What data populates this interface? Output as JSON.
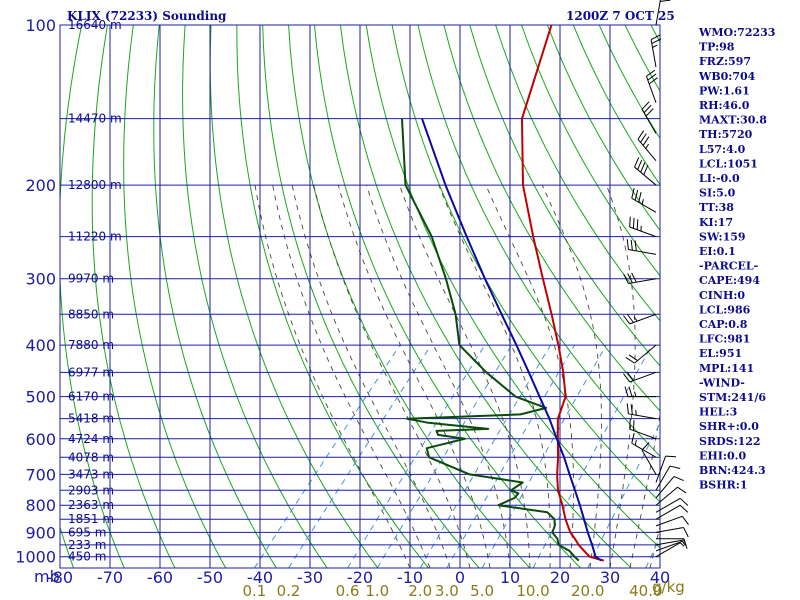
{
  "header": {
    "station": "KLIX (72233) Sounding",
    "time": "1200Z  7 OCT 25"
  },
  "colors": {
    "grid": "#1c1ca8",
    "dry_adiabat": "#1aa81a",
    "moist_adiabat": "#4a4a30",
    "mixing_ratio": "#4a90e0",
    "temperature": "#c00000",
    "dewpoint": "#0a4a0a",
    "parcel": "#0a0aa0",
    "wind": "#000000",
    "labels": "#0b0b8c",
    "mixratio_labels": "#8a7a1a"
  },
  "stats": [
    {
      "label": "WMO:72233"
    },
    {
      "label": "TP:98"
    },
    {
      "label": "FRZ:597"
    },
    {
      "label": "WB0:704"
    },
    {
      "label": "PW:1.61"
    },
    {
      "label": "RH:46.0"
    },
    {
      "label": "MAXT:30.8"
    },
    {
      "label": "TH:5720"
    },
    {
      "label": "L57:4.0"
    },
    {
      "label": "LCL:1051"
    },
    {
      "label": "LI:-0.0"
    },
    {
      "label": "SI:5.0"
    },
    {
      "label": "TT:38"
    },
    {
      "label": "KI:17"
    },
    {
      "label": "SW:159"
    },
    {
      "label": "EI:0.1"
    },
    {
      "label": "-PARCEL-"
    },
    {
      "label": "CAPE:494"
    },
    {
      "label": "CINH:0"
    },
    {
      "label": "LCL:986"
    },
    {
      "label": "CAP:0.8"
    },
    {
      "label": "LFC:981"
    },
    {
      "label": "EL:951"
    },
    {
      "label": "MPL:141"
    },
    {
      "label": "-WIND-"
    },
    {
      "label": "STM:241/6"
    },
    {
      "label": "HEL:3"
    },
    {
      "label": "SHR+:0.0"
    },
    {
      "label": "SRDS:122"
    },
    {
      "label": "EHI:0.0"
    },
    {
      "label": "BRN:424.3"
    },
    {
      "label": "BSHR:1"
    }
  ],
  "chart_data": {
    "type": "line",
    "title": "KLIX (72233) Sounding",
    "subtitle": "1200Z  7 OCT 25",
    "x_axis": {
      "unit_label": "mb",
      "range": [
        -80,
        40
      ],
      "ticks": [
        -80,
        -70,
        -60,
        -50,
        -40,
        -30,
        -20,
        -10,
        0,
        10,
        20,
        30,
        40
      ],
      "tick_labels": [
        "-80",
        "-70",
        "-60",
        "-50",
        "-40",
        "-30",
        "-20",
        "-10",
        "0",
        "10",
        "20",
        "30",
        "40"
      ]
    },
    "y_axis": {
      "scale": "log",
      "range": [
        1050,
        100
      ],
      "ticks": [
        100,
        200,
        300,
        400,
        500,
        600,
        700,
        800,
        900,
        1000
      ]
    },
    "height_labels": [
      {
        "p": 100,
        "label": "16640 m"
      },
      {
        "p": 150,
        "label": "14470 m"
      },
      {
        "p": 200,
        "label": "12800 m"
      },
      {
        "p": 250,
        "label": "11220 m"
      },
      {
        "p": 300,
        "label": "9970 m"
      },
      {
        "p": 350,
        "label": "8850 m"
      },
      {
        "p": 400,
        "label": "7880 m"
      },
      {
        "p": 450,
        "label": "6977 m"
      },
      {
        "p": 500,
        "label": "6170 m"
      },
      {
        "p": 550,
        "label": "5418 m"
      },
      {
        "p": 600,
        "label": "4724 m"
      },
      {
        "p": 650,
        "label": "4078 m"
      },
      {
        "p": 700,
        "label": "3473 m"
      },
      {
        "p": 750,
        "label": "2903 m"
      },
      {
        "p": 800,
        "label": "2363 m"
      },
      {
        "p": 850,
        "label": "1851 m"
      },
      {
        "p": 900,
        "label": "695 m"
      },
      {
        "p": 950,
        "label": "233 m"
      },
      {
        "p": 1000,
        "label": "450 m"
      }
    ],
    "mixing_ratio_labels": [
      "0.1",
      "0.2",
      "0.6",
      "1.0",
      "2.0",
      "3.0",
      "5.0",
      "10.0",
      "20.0",
      "40.0"
    ],
    "mixing_ratio_unit": "g/kg",
    "series": [
      {
        "role": "temperature",
        "points": [
          {
            "p": 1017,
            "t": 27.5
          },
          {
            "p": 1000,
            "t": 24.0
          },
          {
            "p": 950,
            "t": 19.8
          },
          {
            "p": 925,
            "t": 18.0
          },
          {
            "p": 900,
            "t": 16.0
          },
          {
            "p": 850,
            "t": 12.8
          },
          {
            "p": 800,
            "t": 9.8
          },
          {
            "p": 750,
            "t": 6.4
          },
          {
            "p": 700,
            "t": 3.5
          },
          {
            "p": 650,
            "t": 0.8
          },
          {
            "p": 600,
            "t": -2.4
          },
          {
            "p": 550,
            "t": -5.8
          },
          {
            "p": 500,
            "t": -8.0
          },
          {
            "p": 450,
            "t": -12.6
          },
          {
            "p": 400,
            "t": -18.2
          },
          {
            "p": 350,
            "t": -24.8
          },
          {
            "p": 300,
            "t": -32.6
          },
          {
            "p": 250,
            "t": -41.7
          },
          {
            "p": 200,
            "t": -52.5
          },
          {
            "p": 150,
            "t": -64.0
          },
          {
            "p": 100,
            "t": -74.0
          }
        ]
      },
      {
        "role": "dewpoint",
        "points": [
          {
            "p": 1017,
            "t": 22.5
          },
          {
            "p": 1000,
            "t": 21.0
          },
          {
            "p": 975,
            "t": 19.0
          },
          {
            "p": 950,
            "t": 15.8
          },
          {
            "p": 925,
            "t": 14.5
          },
          {
            "p": 900,
            "t": 12.4
          },
          {
            "p": 875,
            "t": 11.8
          },
          {
            "p": 850,
            "t": 10.6
          },
          {
            "p": 825,
            "t": 8.0
          },
          {
            "p": 800,
            "t": -3.0
          },
          {
            "p": 775,
            "t": -1.0
          },
          {
            "p": 760,
            "t": -1.0
          },
          {
            "p": 750,
            "t": -3.0
          },
          {
            "p": 725,
            "t": -2.0
          },
          {
            "p": 700,
            "t": -14.0
          },
          {
            "p": 650,
            "t": -25.0
          },
          {
            "p": 625,
            "t": -27.0
          },
          {
            "p": 600,
            "t": -21.0
          },
          {
            "p": 590,
            "t": -27.0
          },
          {
            "p": 580,
            "t": -28.0
          },
          {
            "p": 575,
            "t": -18.0
          },
          {
            "p": 560,
            "t": -31.0
          },
          {
            "p": 550,
            "t": -36.0
          },
          {
            "p": 540,
            "t": -14.0
          },
          {
            "p": 525,
            "t": -10.0
          },
          {
            "p": 500,
            "t": -18.0
          },
          {
            "p": 450,
            "t": -28.0
          },
          {
            "p": 400,
            "t": -38.0
          },
          {
            "p": 350,
            "t": -44.0
          },
          {
            "p": 300,
            "t": -52.0
          },
          {
            "p": 250,
            "t": -62.0
          },
          {
            "p": 200,
            "t": -76.0
          },
          {
            "p": 150,
            "t": -88.0
          }
        ]
      },
      {
        "role": "parcel",
        "points": [
          {
            "p": 1017,
            "t": 27.0
          },
          {
            "p": 1000,
            "t": 25.2
          },
          {
            "p": 950,
            "t": 22.5
          },
          {
            "p": 900,
            "t": 19.5
          },
          {
            "p": 850,
            "t": 16.5
          },
          {
            "p": 800,
            "t": 13.3
          },
          {
            "p": 750,
            "t": 9.8
          },
          {
            "p": 700,
            "t": 6.0
          },
          {
            "p": 650,
            "t": 2.0
          },
          {
            "p": 600,
            "t": -2.6
          },
          {
            "p": 550,
            "t": -7.5
          },
          {
            "p": 500,
            "t": -13.2
          },
          {
            "p": 450,
            "t": -19.5
          },
          {
            "p": 400,
            "t": -26.6
          },
          {
            "p": 350,
            "t": -34.8
          },
          {
            "p": 300,
            "t": -44.2
          },
          {
            "p": 250,
            "t": -55.0
          },
          {
            "p": 200,
            "t": -68.0
          },
          {
            "p": 150,
            "t": -84.0
          }
        ]
      }
    ],
    "wind_barbs": [
      {
        "p": 1000,
        "dir": 60,
        "spd": 5
      },
      {
        "p": 975,
        "dir": 70,
        "spd": 5
      },
      {
        "p": 950,
        "dir": 80,
        "spd": 5
      },
      {
        "p": 925,
        "dir": 90,
        "spd": 10
      },
      {
        "p": 900,
        "dir": 80,
        "spd": 10
      },
      {
        "p": 875,
        "dir": 70,
        "spd": 10
      },
      {
        "p": 850,
        "dir": 60,
        "spd": 10
      },
      {
        "p": 825,
        "dir": 60,
        "spd": 10
      },
      {
        "p": 800,
        "dir": 50,
        "spd": 10
      },
      {
        "p": 775,
        "dir": 40,
        "spd": 10
      },
      {
        "p": 750,
        "dir": 30,
        "spd": 10
      },
      {
        "p": 725,
        "dir": 20,
        "spd": 10
      },
      {
        "p": 700,
        "dir": 330,
        "spd": 10
      },
      {
        "p": 650,
        "dir": 300,
        "spd": 15
      },
      {
        "p": 600,
        "dir": 290,
        "spd": 20
      },
      {
        "p": 550,
        "dir": 280,
        "spd": 25
      },
      {
        "p": 500,
        "dir": 270,
        "spd": 25
      },
      {
        "p": 450,
        "dir": 250,
        "spd": 20
      },
      {
        "p": 400,
        "dir": 230,
        "spd": 20
      },
      {
        "p": 350,
        "dir": 250,
        "spd": 25
      },
      {
        "p": 300,
        "dir": 260,
        "spd": 30
      },
      {
        "p": 270,
        "dir": 280,
        "spd": 30
      },
      {
        "p": 250,
        "dir": 290,
        "spd": 35
      },
      {
        "p": 225,
        "dir": 300,
        "spd": 35
      },
      {
        "p": 200,
        "dir": 310,
        "spd": 40
      },
      {
        "p": 180,
        "dir": 320,
        "spd": 35
      },
      {
        "p": 160,
        "dir": 330,
        "spd": 30
      },
      {
        "p": 140,
        "dir": 340,
        "spd": 30
      },
      {
        "p": 120,
        "dir": 350,
        "spd": 25
      },
      {
        "p": 100,
        "dir": 10,
        "spd": 20
      }
    ]
  }
}
